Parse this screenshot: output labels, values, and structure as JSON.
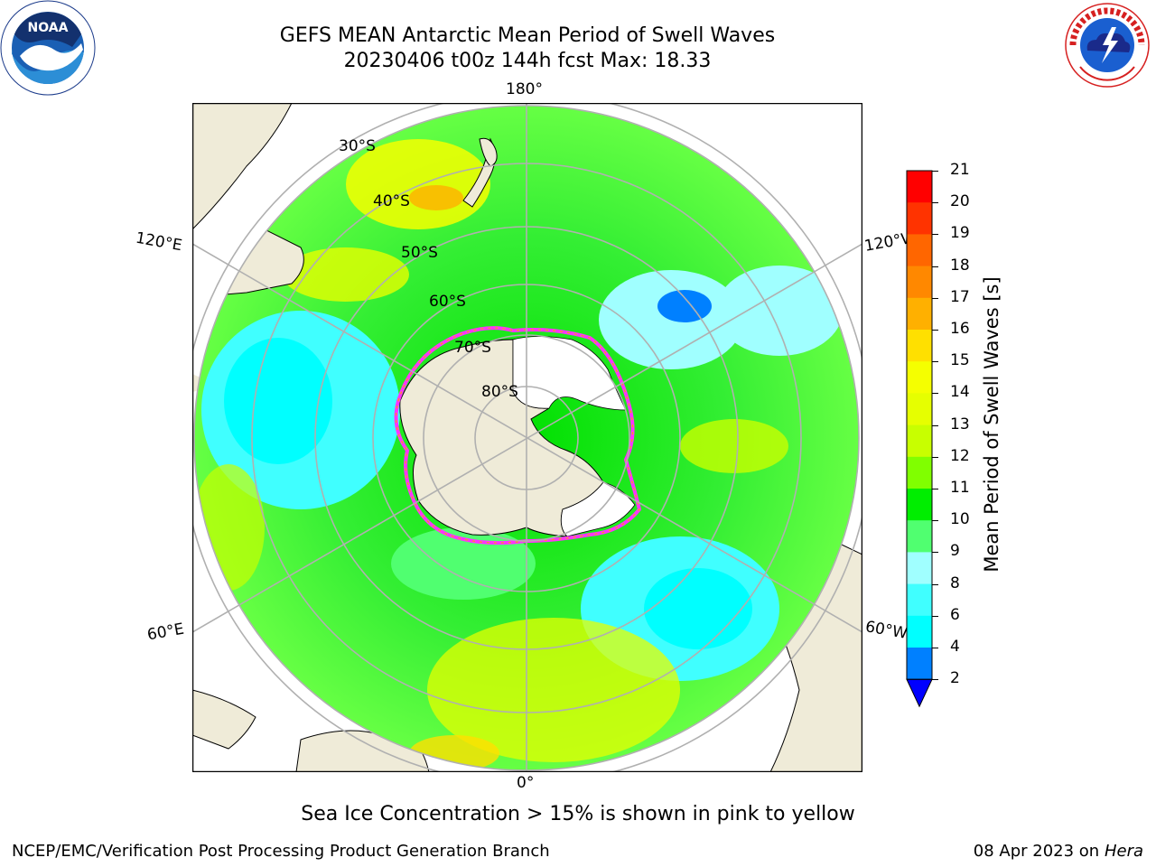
{
  "header": {
    "title_line1": "GEFS MEAN Antarctic Mean Period of Swell Waves",
    "title_line2": "20230406 t00z 144h fcst   Max: 18.33"
  },
  "logos": {
    "left": {
      "name": "NOAA",
      "ring_text": "NATIONAL OCEANIC AND ATMOSPHERIC ADMINISTRATION · U.S. DEPARTMENT OF COMMERCE"
    },
    "right": {
      "name": "NATIONAL WEATHER SERVICE"
    }
  },
  "map": {
    "projection": "south-polar-stereographic",
    "lon_labels": {
      "top": "180°",
      "bottom": "0°",
      "upper_left": "120°E",
      "upper_right": "120°W",
      "lower_left": "60°E",
      "lower_right": "60°W"
    },
    "lat_labels": [
      "30°S",
      "40°S",
      "50°S",
      "60°S",
      "70°S",
      "80°S"
    ],
    "colors": {
      "land": "#efebd8",
      "ice_shelf": "#ffffff",
      "grid": "#b0b0b0",
      "sea_ice_edge": [
        "#ff33ff",
        "#ffa500",
        "#ffff00"
      ]
    }
  },
  "colorbar": {
    "label": "Mean Period of Swell Waves [s]",
    "ticks": [
      "21",
      "20",
      "19",
      "18",
      "17",
      "16",
      "15",
      "14",
      "13",
      "12",
      "11",
      "10",
      "9",
      "8",
      "6",
      "4",
      "2"
    ],
    "colors": [
      "#ff0000",
      "#ff3300",
      "#ff6600",
      "#ff8800",
      "#ffb000",
      "#ffe000",
      "#f5ff00",
      "#e6ff00",
      "#c8ff00",
      "#80ff00",
      "#00ee00",
      "#50ff70",
      "#a0ffff",
      "#40ffff",
      "#00ffff",
      "#0080ff"
    ],
    "extend_color": "#0000ff"
  },
  "footer": {
    "note": "Sea Ice Concentration > 15% is shown in pink to yellow",
    "credit": "NCEP/EMC/Verification Post Processing Product Generation Branch",
    "date": "08 Apr 2023 on ",
    "machine": "Hera"
  }
}
